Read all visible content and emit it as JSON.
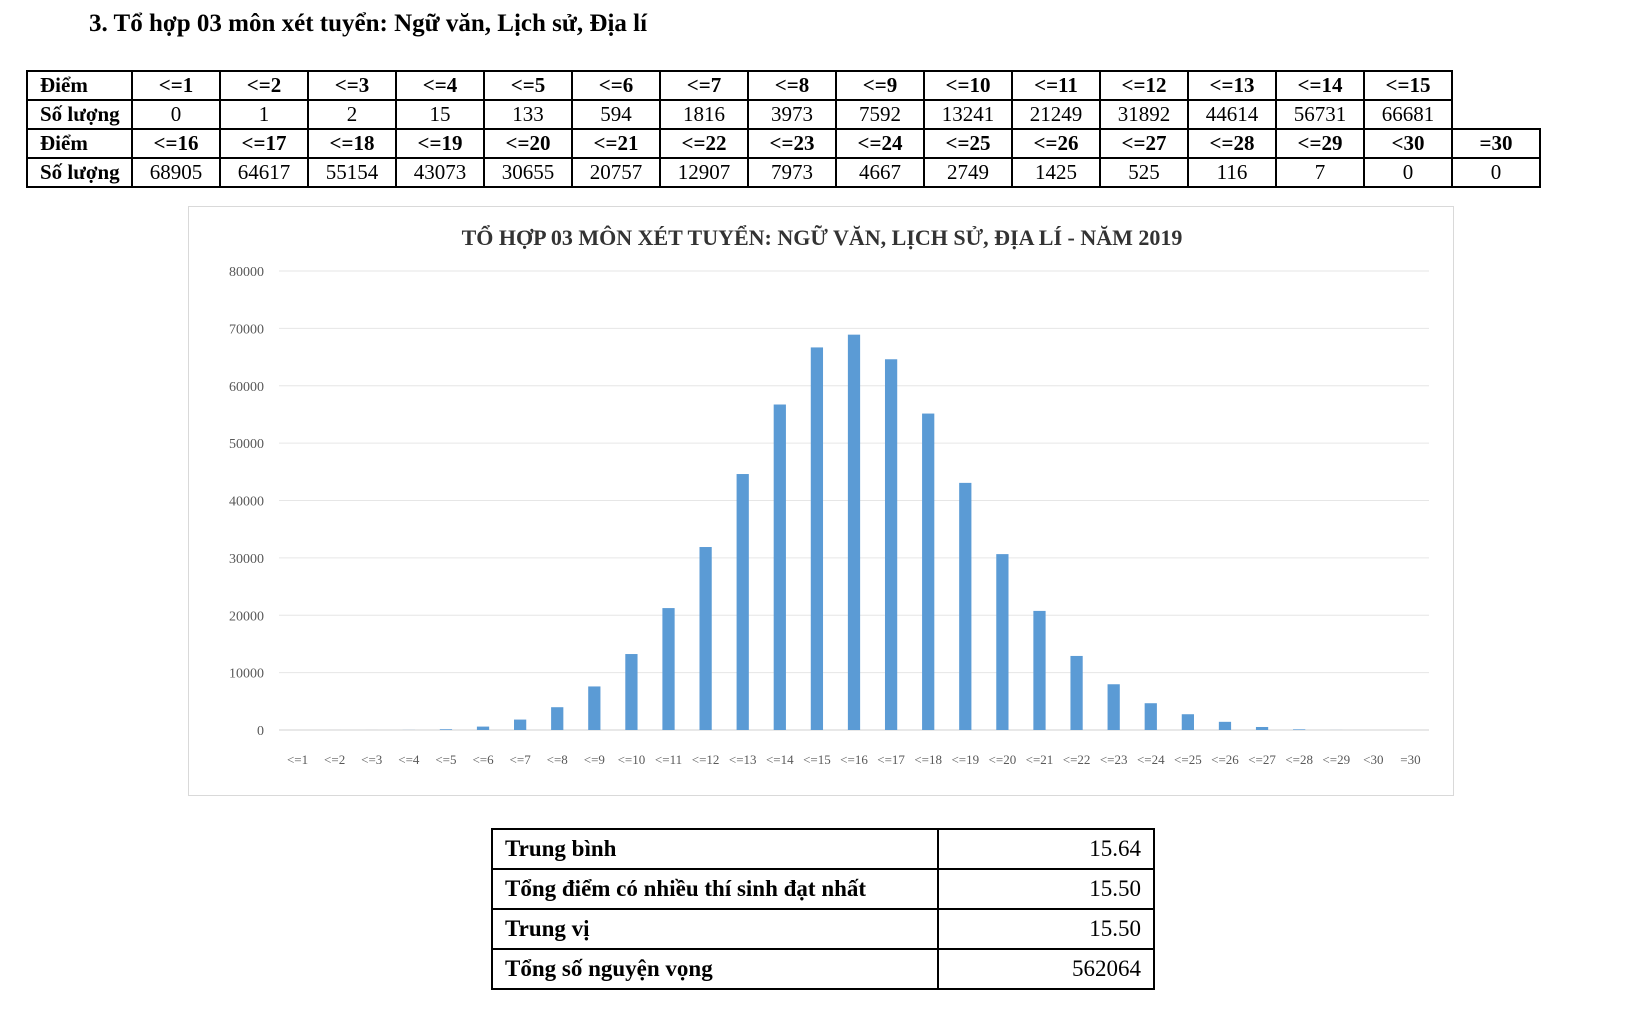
{
  "heading": "3. Tổ hợp 03 môn xét tuyển: Ngữ văn, Lịch sử, Địa lí",
  "table": {
    "score_label": "Điểm",
    "count_label": "Số lượng",
    "row1_scores": [
      "<=1",
      "<=2",
      "<=3",
      "<=4",
      "<=5",
      "<=6",
      "<=7",
      "<=8",
      "<=9",
      "<=10",
      "<=11",
      "<=12",
      "<=13",
      "<=14",
      "<=15"
    ],
    "row1_counts": [
      "0",
      "1",
      "2",
      "15",
      "133",
      "594",
      "1816",
      "3973",
      "7592",
      "13241",
      "21249",
      "31892",
      "44614",
      "56731",
      "66681"
    ],
    "row2_scores": [
      "<=16",
      "<=17",
      "<=18",
      "<=19",
      "<=20",
      "<=21",
      "<=22",
      "<=23",
      "<=24",
      "<=25",
      "<=26",
      "<=27",
      "<=28",
      "<=29",
      "<30",
      "=30"
    ],
    "row2_counts": [
      "68905",
      "64617",
      "55154",
      "43073",
      "30655",
      "20757",
      "12907",
      "7973",
      "4667",
      "2749",
      "1425",
      "525",
      "116",
      "7",
      "0",
      "0"
    ]
  },
  "chart_data": {
    "type": "bar",
    "title": "TỔ HỢP 03 MÔN XÉT TUYỂN: NGỮ VĂN, LỊCH SỬ, ĐỊA LÍ - NĂM 2019",
    "xlabel": "",
    "ylabel": "",
    "ylim": [
      0,
      80000
    ],
    "yticks": [
      "0",
      "10000",
      "20000",
      "30000",
      "40000",
      "50000",
      "60000",
      "70000",
      "80000"
    ],
    "grid": true,
    "color": "#5b9bd5",
    "categories": [
      "<=1",
      "<=2",
      "<=3",
      "<=4",
      "<=5",
      "<=6",
      "<=7",
      "<=8",
      "<=9",
      "<=10",
      "<=11",
      "<=12",
      "<=13",
      "<=14",
      "<=15",
      "<=16",
      "<=17",
      "<=18",
      "<=19",
      "<=20",
      "<=21",
      "<=22",
      "<=23",
      "<=24",
      "<=25",
      "<=26",
      "<=27",
      "<=28",
      "<=29",
      "<30",
      "=30"
    ],
    "values": [
      0,
      1,
      2,
      15,
      133,
      594,
      1816,
      3973,
      7592,
      13241,
      21249,
      31892,
      44614,
      56731,
      66681,
      68905,
      64617,
      55154,
      43073,
      30655,
      20757,
      12907,
      7973,
      4667,
      2749,
      1425,
      525,
      116,
      7,
      0,
      0
    ]
  },
  "stats": [
    {
      "label": "Trung bình",
      "value": "15.64"
    },
    {
      "label": "Tổng điểm có nhiều thí sinh đạt nhất",
      "value": "15.50"
    },
    {
      "label": "Trung vị",
      "value": "15.50"
    },
    {
      "label": "Tổng số nguyện vọng",
      "value": "562064"
    }
  ]
}
